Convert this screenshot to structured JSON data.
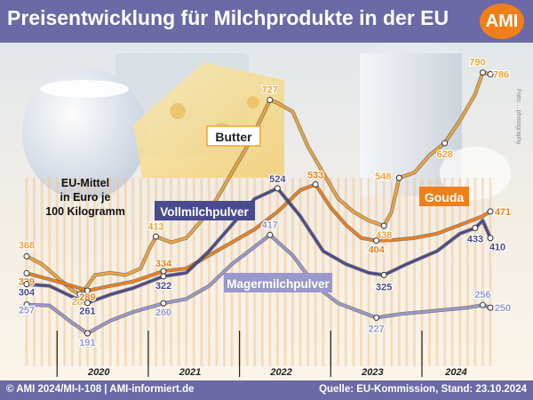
{
  "title": "Preisentwicklung für Milchprodukte in der EU",
  "logo_text": "AMI",
  "footer": {
    "left": "© AMI 2024/MI-I-108 | AMI-informiert.de",
    "right": "Quelle: EU-Kommission, Stand: 23.10.2024"
  },
  "photo_credit": "Foto: ...photography",
  "colors": {
    "header": "#6b6aa6",
    "butter": "#f0a437",
    "gouda": "#f07f1a",
    "vollmilchpulver": "#4a4a8f",
    "magermilchpulver": "#9a98cc"
  },
  "chart_data": {
    "type": "line",
    "annotation": [
      "EU-Mittel",
      "in Euro je",
      "100 Kilogramm"
    ],
    "x_categories": [
      "2020",
      "2021",
      "2022",
      "2023",
      "2024"
    ],
    "xlim": [
      "2019-09",
      "2024-10"
    ],
    "ylim": [
      140,
      830
    ],
    "grid": "vertical monthly stripes, year separators",
    "series": [
      {
        "name": "Butter",
        "color": "#f0a437",
        "points": [
          [
            "2019-09",
            368
          ],
          [
            "2019-11",
            350
          ],
          [
            "2020-01",
            320
          ],
          [
            "2020-03",
            290
          ],
          [
            "2020-04",
            281
          ],
          [
            "2020-05",
            300
          ],
          [
            "2020-06",
            325
          ],
          [
            "2020-08",
            330
          ],
          [
            "2020-10",
            325
          ],
          [
            "2020-12",
            340
          ],
          [
            "2021-01",
            380
          ],
          [
            "2021-02",
            413
          ],
          [
            "2021-04",
            400
          ],
          [
            "2021-06",
            410
          ],
          [
            "2021-08",
            450
          ],
          [
            "2021-10",
            500
          ],
          [
            "2021-12",
            560
          ],
          [
            "2022-02",
            620
          ],
          [
            "2022-04",
            690
          ],
          [
            "2022-05",
            727
          ],
          [
            "2022-06",
            720
          ],
          [
            "2022-08",
            700
          ],
          [
            "2022-10",
            620
          ],
          [
            "2022-12",
            560
          ],
          [
            "2023-02",
            500
          ],
          [
            "2023-04",
            470
          ],
          [
            "2023-06",
            450
          ],
          [
            "2023-08",
            438
          ],
          [
            "2023-09",
            470
          ],
          [
            "2023-10",
            548
          ],
          [
            "2023-12",
            560
          ],
          [
            "2024-02",
            600
          ],
          [
            "2024-04",
            628
          ],
          [
            "2024-06",
            680
          ],
          [
            "2024-08",
            740
          ],
          [
            "2024-09",
            790
          ],
          [
            "2024-10",
            786
          ]
        ],
        "labels": [
          {
            "x": "2019-09",
            "y": 368,
            "text": "368"
          },
          {
            "x": "2020-04",
            "y": 281,
            "text": "281"
          },
          {
            "x": "2021-02",
            "y": 413,
            "text": "413"
          },
          {
            "x": "2022-05",
            "y": 727,
            "text": "727"
          },
          {
            "x": "2023-08",
            "y": 438,
            "text": "438"
          },
          {
            "x": "2023-10",
            "y": 548,
            "text": "548"
          },
          {
            "x": "2024-04",
            "y": 628,
            "text": "628"
          },
          {
            "x": "2024-09",
            "y": 790,
            "text": "790"
          },
          {
            "x": "2024-10",
            "y": 786,
            "text": "786"
          }
        ]
      },
      {
        "name": "Gouda",
        "color": "#f07f1a",
        "points": [
          [
            "2019-09",
            329
          ],
          [
            "2019-12",
            315
          ],
          [
            "2020-03",
            300
          ],
          [
            "2020-05",
            289
          ],
          [
            "2020-08",
            300
          ],
          [
            "2020-11",
            310
          ],
          [
            "2021-03",
            334
          ],
          [
            "2021-06",
            340
          ],
          [
            "2021-09",
            370
          ],
          [
            "2021-12",
            400
          ],
          [
            "2022-03",
            430
          ],
          [
            "2022-06",
            470
          ],
          [
            "2022-09",
            520
          ],
          [
            "2022-11",
            533
          ],
          [
            "2023-01",
            480
          ],
          [
            "2023-03",
            440
          ],
          [
            "2023-05",
            410
          ],
          [
            "2023-07",
            404
          ],
          [
            "2023-09",
            405
          ],
          [
            "2023-12",
            410
          ],
          [
            "2024-03",
            420
          ],
          [
            "2024-06",
            440
          ],
          [
            "2024-09",
            460
          ],
          [
            "2024-10",
            471
          ]
        ],
        "labels": [
          {
            "x": "2019-09",
            "y": 329,
            "text": "329"
          },
          {
            "x": "2020-05",
            "y": 289,
            "text": "289"
          },
          {
            "x": "2021-03",
            "y": 334,
            "text": "334"
          },
          {
            "x": "2022-11",
            "y": 533,
            "text": "533"
          },
          {
            "x": "2023-07",
            "y": 404,
            "text": "404"
          },
          {
            "x": "2024-10",
            "y": 471,
            "text": "471"
          }
        ]
      },
      {
        "name": "Vollmilchpulver",
        "color": "#4a4a8f",
        "points": [
          [
            "2019-09",
            304
          ],
          [
            "2019-12",
            300
          ],
          [
            "2020-03",
            275
          ],
          [
            "2020-05",
            261
          ],
          [
            "2020-08",
            280
          ],
          [
            "2020-11",
            295
          ],
          [
            "2021-03",
            322
          ],
          [
            "2021-06",
            330
          ],
          [
            "2021-09",
            380
          ],
          [
            "2021-12",
            440
          ],
          [
            "2022-03",
            500
          ],
          [
            "2022-06",
            524
          ],
          [
            "2022-09",
            460
          ],
          [
            "2022-12",
            380
          ],
          [
            "2023-03",
            350
          ],
          [
            "2023-06",
            330
          ],
          [
            "2023-08",
            325
          ],
          [
            "2023-11",
            350
          ],
          [
            "2024-03",
            380
          ],
          [
            "2024-06",
            420
          ],
          [
            "2024-08",
            433
          ],
          [
            "2024-09",
            450
          ],
          [
            "2024-10",
            410
          ]
        ],
        "labels": [
          {
            "x": "2019-09",
            "y": 304,
            "text": "304"
          },
          {
            "x": "2020-05",
            "y": 261,
            "text": "261"
          },
          {
            "x": "2021-03",
            "y": 322,
            "text": "322"
          },
          {
            "x": "2022-06",
            "y": 524,
            "text": "524"
          },
          {
            "x": "2023-08",
            "y": 325,
            "text": "325"
          },
          {
            "x": "2024-08",
            "y": 433,
            "text": "433"
          },
          {
            "x": "2024-10",
            "y": 410,
            "text": "410"
          }
        ]
      },
      {
        "name": "Magermilchpulver",
        "color": "#9a98cc",
        "points": [
          [
            "2019-09",
            257
          ],
          [
            "2019-12",
            255
          ],
          [
            "2020-03",
            215
          ],
          [
            "2020-05",
            191
          ],
          [
            "2020-08",
            220
          ],
          [
            "2020-11",
            240
          ],
          [
            "2021-03",
            260
          ],
          [
            "2021-06",
            270
          ],
          [
            "2021-09",
            300
          ],
          [
            "2021-12",
            350
          ],
          [
            "2022-03",
            390
          ],
          [
            "2022-05",
            417
          ],
          [
            "2022-08",
            370
          ],
          [
            "2022-11",
            300
          ],
          [
            "2023-02",
            260
          ],
          [
            "2023-05",
            240
          ],
          [
            "2023-07",
            227
          ],
          [
            "2023-10",
            235
          ],
          [
            "2024-01",
            240
          ],
          [
            "2024-04",
            245
          ],
          [
            "2024-07",
            250
          ],
          [
            "2024-09",
            256
          ],
          [
            "2024-10",
            250
          ]
        ],
        "labels": [
          {
            "x": "2019-09",
            "y": 257,
            "text": "257"
          },
          {
            "x": "2020-05",
            "y": 191,
            "text": "191"
          },
          {
            "x": "2021-03",
            "y": 260,
            "text": "260"
          },
          {
            "x": "2022-05",
            "y": 417,
            "text": "417"
          },
          {
            "x": "2023-07",
            "y": 227,
            "text": "227"
          },
          {
            "x": "2024-09",
            "y": 256,
            "text": "256"
          },
          {
            "x": "2024-10",
            "y": 250,
            "text": "250"
          }
        ]
      }
    ]
  }
}
